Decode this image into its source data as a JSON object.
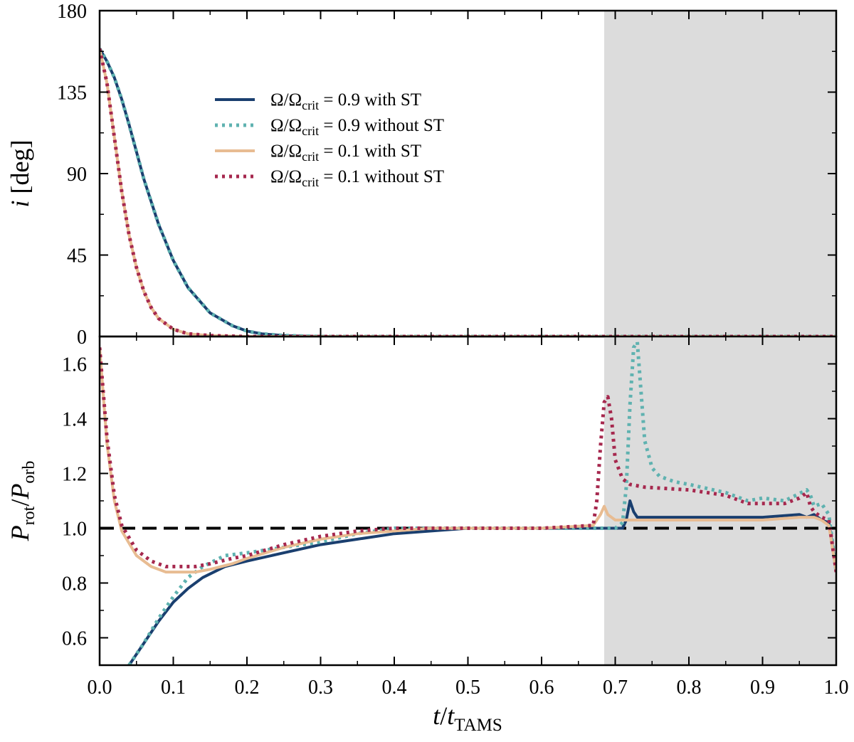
{
  "chart_data": [
    {
      "type": "line",
      "panel": "top",
      "ylabel_symbol": "i",
      "ylabel_unit": "[deg]",
      "ylim": [
        0,
        180
      ],
      "xlim": [
        0.0,
        1.0
      ],
      "yticks": [
        "0",
        "45",
        "90",
        "135",
        "180"
      ],
      "shaded_region": [
        0.685,
        1.0
      ],
      "legend": {
        "placement": "upper-center",
        "entries": [
          {
            "id": "s09st",
            "pre": "Ω/Ω",
            "sub": "crit",
            "post": " = 0.9 with ST"
          },
          {
            "id": "s09no",
            "pre": "Ω/Ω",
            "sub": "crit",
            "post": " = 0.9 without ST"
          },
          {
            "id": "s01st",
            "pre": "Ω/Ω",
            "sub": "crit",
            "post": " = 0.1 with ST"
          },
          {
            "id": "s01no",
            "pre": "Ω/Ω",
            "sub": "crit",
            "post": " = 0.1 without ST"
          }
        ]
      },
      "series": [
        {
          "id": "s09st",
          "name": "Ω/Ωcrit = 0.9 with ST",
          "x": [
            0.0,
            0.01,
            0.02,
            0.03,
            0.04,
            0.05,
            0.06,
            0.08,
            0.1,
            0.12,
            0.15,
            0.18,
            0.2,
            0.22,
            0.25,
            0.28,
            0.3,
            1.0
          ],
          "y": [
            159,
            152,
            143,
            131,
            117,
            102,
            87,
            62,
            42,
            27,
            13,
            6,
            3,
            1.5,
            0.5,
            0.2,
            0,
            0
          ]
        },
        {
          "id": "s09no",
          "name": "Ω/Ωcrit = 0.9 without ST",
          "x": [
            0.0,
            0.01,
            0.02,
            0.03,
            0.04,
            0.05,
            0.06,
            0.08,
            0.1,
            0.12,
            0.15,
            0.18,
            0.2,
            0.22,
            0.25,
            0.28,
            0.3,
            1.0
          ],
          "y": [
            159,
            152,
            143,
            131,
            117,
            102,
            87,
            62,
            42,
            27,
            13,
            6,
            3,
            1.5,
            0.5,
            0.2,
            0,
            0
          ]
        },
        {
          "id": "s01st",
          "name": "Ω/Ωcrit = 0.1 with ST",
          "x": [
            0.0,
            0.01,
            0.02,
            0.03,
            0.04,
            0.05,
            0.06,
            0.07,
            0.08,
            0.1,
            0.12,
            0.15,
            0.18,
            0.2,
            0.25,
            1.0
          ],
          "y": [
            159,
            140,
            110,
            80,
            56,
            38,
            25,
            16,
            10,
            4,
            1.5,
            0.5,
            0.2,
            0,
            0,
            0
          ]
        },
        {
          "id": "s01no",
          "name": "Ω/Ωcrit = 0.1 without ST",
          "x": [
            0.0,
            0.01,
            0.02,
            0.03,
            0.04,
            0.05,
            0.06,
            0.07,
            0.08,
            0.1,
            0.12,
            0.15,
            0.18,
            0.2,
            0.25,
            1.0
          ],
          "y": [
            159,
            140,
            110,
            80,
            56,
            38,
            25,
            16,
            10,
            4,
            1.5,
            0.5,
            0.2,
            0,
            0,
            0
          ]
        }
      ]
    },
    {
      "type": "line",
      "panel": "bottom",
      "ylabel_main_1": "P",
      "ylabel_sub_1": "rot",
      "ylabel_slash": "/",
      "ylabel_main_2": "P",
      "ylabel_sub_2": "orb",
      "xlabel_main_1": "t",
      "xlabel_slash": "/",
      "xlabel_main_2": "t",
      "xlabel_sub": "TAMS",
      "ylim": [
        0.5,
        1.7
      ],
      "xlim": [
        0.0,
        1.0
      ],
      "yticks": [
        "0.6",
        "0.8",
        "1.0",
        "1.2",
        "1.4",
        "1.6"
      ],
      "xticks": [
        "0.0",
        "0.1",
        "0.2",
        "0.3",
        "0.4",
        "0.5",
        "0.6",
        "0.7",
        "0.8",
        "0.9",
        "1.0"
      ],
      "reference_line": 1.0,
      "shaded_region": [
        0.685,
        1.0
      ],
      "series": [
        {
          "id": "s09st",
          "name": "Ω/Ωcrit = 0.9 with ST",
          "x": [
            0.04,
            0.06,
            0.08,
            0.1,
            0.12,
            0.14,
            0.17,
            0.2,
            0.25,
            0.3,
            0.35,
            0.4,
            0.45,
            0.5,
            0.6,
            0.68,
            0.71,
            0.715,
            0.72,
            0.725,
            0.73,
            0.74,
            0.8,
            0.85,
            0.9,
            0.95,
            0.96,
            0.97,
            0.98,
            0.99,
            1.0
          ],
          "y": [
            0.5,
            0.58,
            0.66,
            0.73,
            0.78,
            0.82,
            0.86,
            0.88,
            0.91,
            0.94,
            0.96,
            0.98,
            0.99,
            1.0,
            1.0,
            1.0,
            1.0,
            1.03,
            1.1,
            1.06,
            1.04,
            1.04,
            1.04,
            1.04,
            1.04,
            1.05,
            1.04,
            1.05,
            1.03,
            1.02,
            0.84
          ]
        },
        {
          "id": "s09no",
          "name": "Ω/Ωcrit = 0.9 without ST",
          "x": [
            0.04,
            0.06,
            0.08,
            0.1,
            0.12,
            0.14,
            0.17,
            0.2,
            0.25,
            0.3,
            0.35,
            0.4,
            0.45,
            0.5,
            0.6,
            0.7,
            0.71,
            0.715,
            0.72,
            0.725,
            0.73,
            0.735,
            0.74,
            0.75,
            0.76,
            0.78,
            0.8,
            0.85,
            0.88,
            0.9,
            0.93,
            0.96,
            0.965,
            0.97,
            0.98,
            0.99,
            1.0
          ],
          "y": [
            0.5,
            0.58,
            0.67,
            0.75,
            0.82,
            0.86,
            0.9,
            0.91,
            0.93,
            0.95,
            0.98,
            1.0,
            1.0,
            1.0,
            1.0,
            1.0,
            1.02,
            1.15,
            1.45,
            1.66,
            1.68,
            1.5,
            1.32,
            1.22,
            1.19,
            1.17,
            1.16,
            1.13,
            1.1,
            1.11,
            1.1,
            1.14,
            1.12,
            1.08,
            1.09,
            1.05,
            0.84
          ]
        },
        {
          "id": "s01st",
          "name": "Ω/Ωcrit = 0.1 with ST",
          "x": [
            0.0,
            0.01,
            0.02,
            0.03,
            0.05,
            0.07,
            0.09,
            0.11,
            0.13,
            0.15,
            0.18,
            0.2,
            0.25,
            0.3,
            0.35,
            0.4,
            0.45,
            0.5,
            0.6,
            0.67,
            0.68,
            0.685,
            0.69,
            0.7,
            0.72,
            0.8,
            0.9,
            0.95,
            0.97,
            0.98,
            0.99,
            1.0
          ],
          "y": [
            1.66,
            1.31,
            1.1,
            0.99,
            0.9,
            0.86,
            0.84,
            0.84,
            0.84,
            0.85,
            0.87,
            0.89,
            0.93,
            0.96,
            0.98,
            0.99,
            1.0,
            1.0,
            1.0,
            1.01,
            1.05,
            1.08,
            1.05,
            1.03,
            1.03,
            1.03,
            1.03,
            1.04,
            1.04,
            1.03,
            1.01,
            0.84
          ]
        },
        {
          "id": "s01no",
          "name": "Ω/Ωcrit = 0.1 without ST",
          "x": [
            0.0,
            0.01,
            0.02,
            0.03,
            0.05,
            0.07,
            0.09,
            0.11,
            0.13,
            0.15,
            0.18,
            0.2,
            0.25,
            0.3,
            0.35,
            0.4,
            0.45,
            0.5,
            0.6,
            0.67,
            0.675,
            0.68,
            0.685,
            0.69,
            0.695,
            0.7,
            0.71,
            0.72,
            0.74,
            0.8,
            0.85,
            0.88,
            0.9,
            0.93,
            0.95,
            0.96,
            0.965,
            0.97,
            0.98,
            0.99,
            1.0
          ],
          "y": [
            1.66,
            1.33,
            1.12,
            1.01,
            0.92,
            0.88,
            0.86,
            0.86,
            0.86,
            0.87,
            0.89,
            0.9,
            0.94,
            0.97,
            0.99,
            1.0,
            1.0,
            1.0,
            1.0,
            1.01,
            1.1,
            1.3,
            1.46,
            1.48,
            1.4,
            1.25,
            1.18,
            1.16,
            1.15,
            1.14,
            1.12,
            1.09,
            1.09,
            1.09,
            1.11,
            1.13,
            1.08,
            1.06,
            1.04,
            1.03,
            0.84
          ]
        }
      ]
    }
  ],
  "styles": {
    "s09st": {
      "color": "#1a3f6f",
      "dash": "none",
      "width": 4
    },
    "s09no": {
      "color": "#5fb2b0",
      "dash": "4 6",
      "width": 5
    },
    "s01st": {
      "color": "#e8bc92",
      "dash": "none",
      "width": 4
    },
    "s01no": {
      "color": "#a6284e",
      "dash": "4 6",
      "width": 5
    },
    "shade": "#dcdcdc",
    "refline": "#000000"
  }
}
